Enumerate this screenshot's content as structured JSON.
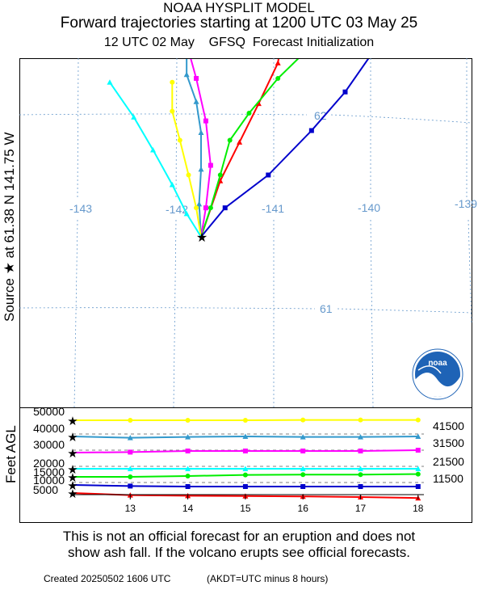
{
  "header": {
    "model_title": "NOAA HYSPLIT MODEL",
    "trajectory_title": "Forward trajectories starting at 1200 UTC 03 May 25",
    "init_line": "12 UTC 02 May    GFSQ  Forecast Initialization"
  },
  "source_label": "Source ★  at   61.38 N  141.75 W",
  "logo_text": "noaa",
  "colors": {
    "red": "#ff0000",
    "blue": "#0000cc",
    "cyan": "#00ffff",
    "magenta": "#ff00ff",
    "steelblue": "#3399cc",
    "yellow": "#ffff00",
    "green": "#00ee00",
    "grid": "#6699cc"
  },
  "chart_data": [
    {
      "type": "line",
      "title": "Trajectory map",
      "grid": true,
      "longitude_labels": [
        "-143",
        "-142",
        "-141",
        "-140",
        "-139"
      ],
      "latitude_labels": [
        "62",
        "61"
      ],
      "source": {
        "lat": 61.38,
        "lon": -141.75
      },
      "series": [
        {
          "color": "red",
          "points": [
            [
              -141.75,
              61.38
            ],
            [
              -141.55,
              61.67
            ],
            [
              -141.35,
              61.87
            ],
            [
              -141.15,
              62.07
            ],
            [
              -140.95,
              62.28
            ],
            [
              -140.9,
              62.45
            ]
          ]
        },
        {
          "color": "blue",
          "points": [
            [
              -141.75,
              61.38
            ],
            [
              -141.5,
              61.53
            ],
            [
              -141.05,
              61.7
            ],
            [
              -140.6,
              61.93
            ],
            [
              -140.25,
              62.13
            ],
            [
              -139.9,
              62.38
            ],
            [
              -139.55,
              62.58
            ]
          ]
        },
        {
          "color": "green",
          "points": [
            [
              -141.75,
              61.38
            ],
            [
              -141.65,
              61.53
            ],
            [
              -141.55,
              61.7
            ],
            [
              -141.45,
              61.88
            ],
            [
              -141.25,
              62.02
            ],
            [
              -140.95,
              62.2
            ],
            [
              -140.6,
              62.37
            ]
          ]
        },
        {
          "color": "magenta",
          "points": [
            [
              -141.75,
              61.38
            ],
            [
              -141.7,
              61.53
            ],
            [
              -141.65,
              61.75
            ],
            [
              -141.7,
              61.98
            ],
            [
              -141.8,
              62.2
            ],
            [
              -141.95,
              62.47
            ]
          ]
        },
        {
          "color": "steelblue",
          "points": [
            [
              -141.75,
              61.38
            ],
            [
              -141.77,
              61.55
            ],
            [
              -141.75,
              61.73
            ],
            [
              -141.75,
              61.92
            ],
            [
              -141.8,
              62.08
            ],
            [
              -141.9,
              62.22
            ],
            [
              -141.9,
              62.47
            ]
          ]
        },
        {
          "color": "yellow",
          "points": [
            [
              -141.75,
              61.38
            ],
            [
              -141.8,
              61.53
            ],
            [
              -141.88,
              61.7
            ],
            [
              -141.97,
              61.88
            ],
            [
              -142.05,
              62.03
            ],
            [
              -142.05,
              62.18
            ]
          ]
        },
        {
          "color": "cyan",
          "points": [
            [
              -141.75,
              61.38
            ],
            [
              -141.9,
              61.5
            ],
            [
              -142.05,
              61.65
            ],
            [
              -142.25,
              61.83
            ],
            [
              -142.45,
              62.0
            ],
            [
              -142.7,
              62.18
            ]
          ]
        }
      ]
    },
    {
      "type": "line",
      "ylabel": "Feet AGL",
      "x_ticks": [
        "13",
        "14",
        "15",
        "16",
        "17",
        "18"
      ],
      "xlim": [
        12,
        18
      ],
      "left_labels": [
        "50000",
        "40000",
        "30000",
        "20000",
        "15000",
        "10000",
        "5000"
      ],
      "right_labels": [
        "41500",
        "31500",
        "21500",
        "11500"
      ],
      "series": [
        {
          "color": "yellow",
          "x": [
            12,
            13,
            14,
            15,
            16,
            17,
            18
          ],
          "y": [
            50000,
            50000,
            50000,
            50000,
            50200,
            50200,
            50200
          ]
        },
        {
          "color": "steelblue",
          "x": [
            12,
            13,
            14,
            15,
            16,
            17,
            18
          ],
          "y": [
            40000,
            39200,
            39700,
            40000,
            39700,
            39700,
            40000
          ]
        },
        {
          "color": "magenta",
          "x": [
            12,
            13,
            14,
            15,
            16,
            17,
            18
          ],
          "y": [
            30000,
            30300,
            31000,
            31000,
            31000,
            31000,
            31500
          ]
        },
        {
          "color": "cyan",
          "x": [
            12,
            13,
            14,
            15,
            16,
            17,
            18
          ],
          "y": [
            20000,
            20000,
            20000,
            20000,
            20000,
            20000,
            20000
          ]
        },
        {
          "color": "green",
          "x": [
            12,
            13,
            14,
            15,
            16,
            17,
            18
          ],
          "y": [
            15000,
            15000,
            15500,
            16200,
            16400,
            16400,
            16700
          ]
        },
        {
          "color": "blue",
          "x": [
            12,
            13,
            14,
            15,
            16,
            17,
            18
          ],
          "y": [
            10000,
            9300,
            9000,
            9000,
            9000,
            9000,
            9000
          ]
        },
        {
          "color": "red",
          "x": [
            12,
            13,
            14,
            15,
            16,
            17,
            18
          ],
          "y": [
            5000,
            3700,
            3300,
            3100,
            2900,
            2500,
            1900
          ]
        }
      ]
    }
  ],
  "disclaimer": {
    "line1": "This is not an official forecast for an eruption and does not",
    "line2": "show ash fall. If the volcano erupts see official forecasts."
  },
  "footer": {
    "created": "Created 20250502 1606 UTC",
    "tz_note": "(AKDT=UTC minus 8 hours)"
  }
}
